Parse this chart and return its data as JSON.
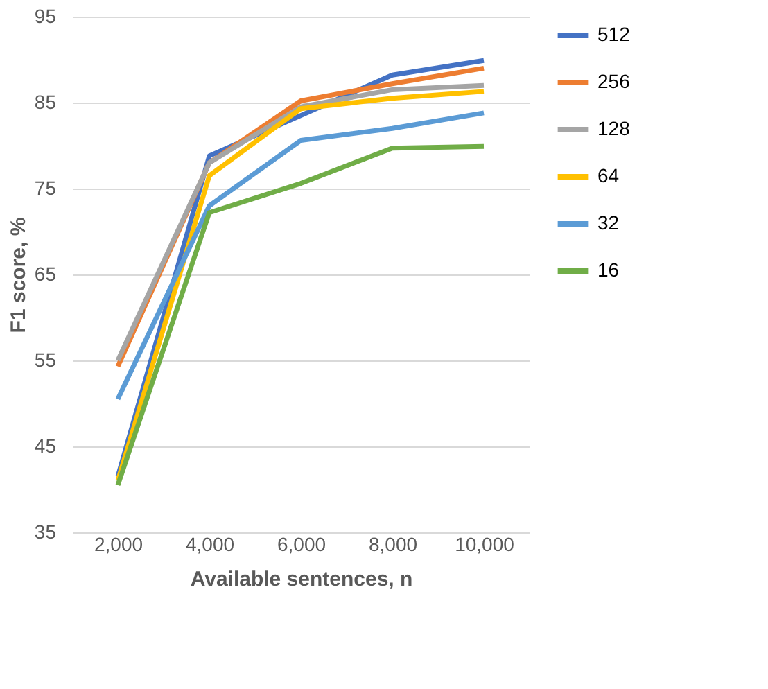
{
  "chart_data": {
    "type": "line",
    "xlabel": "Available sentences, n",
    "ylabel": "F1 score, %",
    "categories": [
      "2,000",
      "4,000",
      "6,000",
      "8,000",
      "10,000"
    ],
    "ylim": [
      35,
      95
    ],
    "yticks": [
      35,
      45,
      55,
      65,
      75,
      85,
      95
    ],
    "grid": "y",
    "legend": "right",
    "marker": "none",
    "line_style": "solid",
    "series": [
      {
        "name": "512",
        "color": "#4472c4",
        "values": [
          41.5,
          78.8,
          83.5,
          88.2,
          89.9
        ]
      },
      {
        "name": "256",
        "color": "#ed7d31",
        "values": [
          54.3,
          78.0,
          85.2,
          87.2,
          89.0
        ]
      },
      {
        "name": "128",
        "color": "#a5a5a5",
        "values": [
          55.0,
          78.0,
          84.5,
          86.5,
          87.0
        ]
      },
      {
        "name": "64",
        "color": "#ffc000",
        "values": [
          41.0,
          76.5,
          84.3,
          85.5,
          86.3
        ]
      },
      {
        "name": "32",
        "color": "#5b9bd5",
        "values": [
          50.5,
          73.0,
          80.6,
          82.0,
          83.8
        ]
      },
      {
        "name": "16",
        "color": "#70ad47",
        "values": [
          40.5,
          72.2,
          75.6,
          79.7,
          79.9
        ]
      }
    ]
  }
}
